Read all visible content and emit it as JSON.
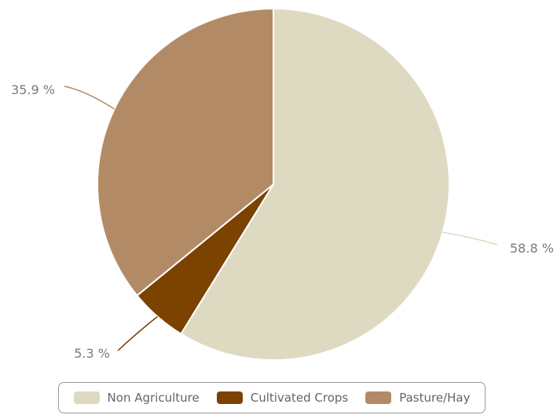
{
  "chart_data": {
    "type": "pie",
    "title": "",
    "slices": [
      {
        "name": "Non Agriculture",
        "value": 58.8,
        "label": "58.8 %",
        "color": "#dedac2"
      },
      {
        "name": "Cultivated Crops",
        "value": 5.3,
        "label": "5.3 %",
        "color": "#7b4200"
      },
      {
        "name": "Pasture/Hay",
        "value": 35.9,
        "label": "35.9 %",
        "color": "#b28b66"
      }
    ],
    "legend": {
      "position": "bottom",
      "items": [
        {
          "label": "Non Agriculture",
          "color": "#dedac2"
        },
        {
          "label": "Cultivated Crops",
          "color": "#7b4200"
        },
        {
          "label": "Pasture/Hay",
          "color": "#b28b66"
        }
      ]
    }
  }
}
